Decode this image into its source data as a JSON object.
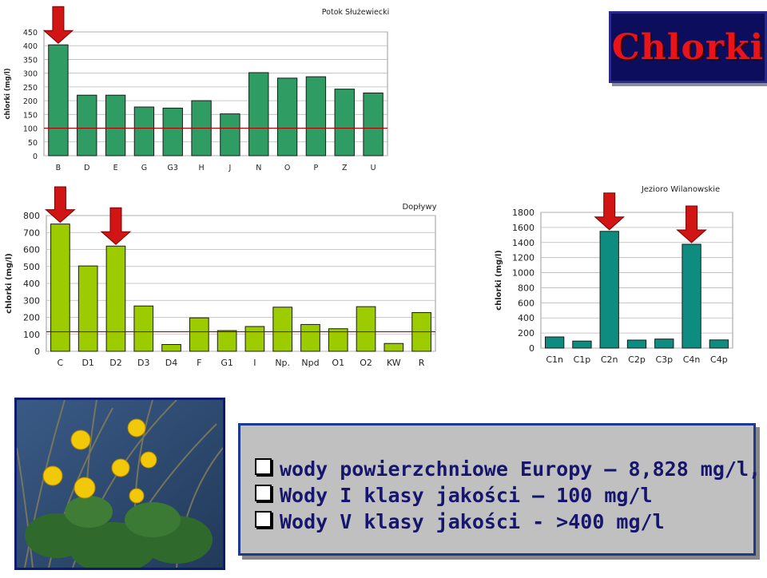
{
  "slide_title": "Chlorki",
  "colors": {
    "bar_top": "#2e9c63",
    "bar_left": "#9ccc00",
    "bar_right": "#0f8c80",
    "ref_line": "#b00000",
    "arrow": "#d11414"
  },
  "info": {
    "lines": [
      "wody powierzchniowe Europy – 8,828 mg/l,",
      "Wody I klasy jakości – 100 mg/l",
      "Wody V klasy jakości - >400 mg/l"
    ]
  },
  "photo": {
    "icon": "marsh-marigold-photo"
  },
  "chart_data": [
    {
      "type": "bar",
      "title": "Potok Służewiecki",
      "ylabel": "chlorki (mg/l)",
      "categories": [
        "B",
        "D",
        "E",
        "G",
        "G3",
        "H",
        "J",
        "N",
        "O",
        "P",
        "Z",
        "U"
      ],
      "values": [
        403,
        220,
        220,
        177,
        173,
        200,
        152,
        302,
        282,
        287,
        242,
        228
      ],
      "ylim": [
        0,
        450
      ],
      "yticks": [
        "0",
        "50",
        "100",
        "150",
        "200",
        "250",
        "300",
        "350",
        "400",
        "450"
      ],
      "reference_line": 100,
      "highlighted": [
        "B"
      ]
    },
    {
      "type": "bar",
      "title": "Dopływy",
      "ylabel": "chlorki (mg/l)",
      "categories": [
        "C",
        "D1",
        "D2",
        "D3",
        "D4",
        "F",
        "G1",
        "I",
        "Np.",
        "Npd",
        "O1",
        "O2",
        "KW",
        "R"
      ],
      "values": [
        750,
        503,
        620,
        267,
        40,
        197,
        122,
        146,
        260,
        158,
        133,
        263,
        46,
        228
      ],
      "ylim": [
        0,
        800
      ],
      "yticks": [
        "0",
        "100",
        "200",
        "300",
        "400",
        "500",
        "600",
        "700",
        "800"
      ],
      "reference_line": 115,
      "highlighted": [
        "C",
        "D2"
      ]
    },
    {
      "type": "bar",
      "title": "Jezioro Wilanowskie",
      "ylabel": "chlorki (mg/l)",
      "categories": [
        "C1n",
        "C1p",
        "C2n",
        "C2p",
        "C3p",
        "C4n",
        "C4p"
      ],
      "values": [
        148,
        93,
        1548,
        106,
        120,
        1377,
        108
      ],
      "ylim": [
        0,
        1800
      ],
      "yticks": [
        "0",
        "200",
        "400",
        "600",
        "800",
        "1000",
        "1200",
        "1400",
        "1600",
        "1800"
      ],
      "highlighted": [
        "C2n",
        "C4n"
      ]
    }
  ]
}
